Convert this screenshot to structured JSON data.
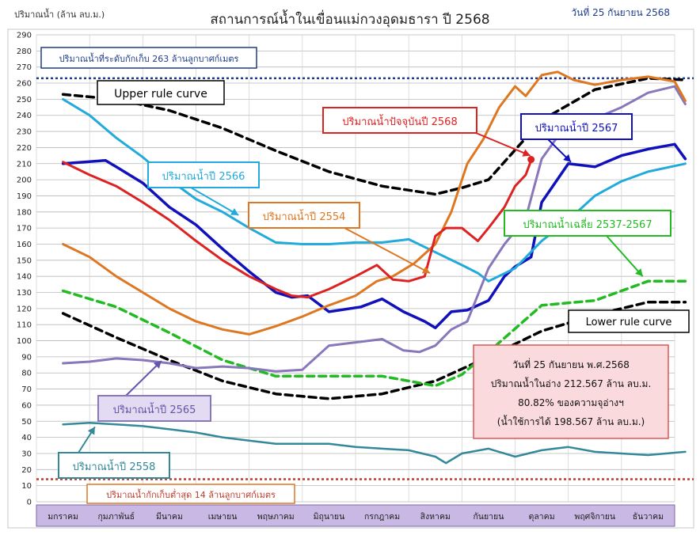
{
  "chart_data": {
    "type": "line",
    "title": "สถานการณ์น้ำในเขื่อนแม่กวงอุดมธารา ปี  2568",
    "date_label": "วันที่ 25 กันยายน 2568",
    "ylabel": "ปริมาณน้ำ (ล้าน ลบ.ม.)",
    "ylim": [
      0,
      290
    ],
    "ytick_step": 10,
    "grid": true,
    "months": [
      "มกราคม",
      "กุมภาพันธ์",
      "มีนาคม",
      "เมษายน",
      "พฤษภาคม",
      "มิถุนายน",
      "กรกฎาคม",
      "สิงหาคม",
      "กันยายน",
      "ตุลาคม",
      "พฤศจิกายน",
      "ธันวาคม"
    ],
    "reference_lines": [
      {
        "value": 263,
        "label": "ปริมาณน้ำที่ระดับกักเก็บ 263 ล้านลูกบาศก์เมตร",
        "color": "#1f3c88"
      },
      {
        "value": 14,
        "label": "ปริมาณน้ำกักเก็บต่ำสุด 14 ล้านลูกบาศก์เมตร",
        "color": "#c0392b"
      }
    ],
    "series": [
      {
        "name": "Upper rule curve",
        "color": "#000000",
        "style": "dash",
        "width": 3.5,
        "x": [
          0,
          1,
          2,
          3,
          4,
          5,
          6,
          7,
          7.5,
          8,
          9,
          10,
          11,
          11.7
        ],
        "y": [
          253,
          250,
          243,
          232,
          218,
          205,
          196,
          191,
          195,
          200,
          237,
          256,
          263,
          262
        ]
      },
      {
        "name": "Lower rule curve",
        "color": "#000000",
        "style": "dash",
        "width": 3.5,
        "x": [
          0,
          1,
          2,
          3,
          4,
          5,
          6,
          7,
          8,
          9,
          10,
          11,
          11.7
        ],
        "y": [
          117,
          102,
          88,
          75,
          67,
          64,
          67,
          75,
          90,
          106,
          116,
          124,
          124
        ]
      },
      {
        "name": "ปริมาณน้ำเฉลี่ย 2537-2567",
        "color": "#22bb22",
        "style": "dash",
        "width": 3.5,
        "x": [
          0,
          1,
          2,
          3,
          4,
          5,
          6,
          7,
          7.5,
          8,
          9,
          10,
          11,
          11.7
        ],
        "y": [
          131,
          121,
          105,
          88,
          78,
          78,
          78,
          72,
          79,
          93,
          122,
          125,
          137,
          137
        ]
      },
      {
        "name": "ปริมาณน้ำปี 2567",
        "color": "#1111bb",
        "style": "solid",
        "width": 3.5,
        "x": [
          0,
          0.8,
          1,
          1.5,
          2,
          2.5,
          3,
          3.5,
          4,
          4.3,
          4.6,
          5,
          5.6,
          6,
          6.4,
          6.8,
          7,
          7.3,
          7.6,
          8,
          8.3,
          8.5,
          8.8,
          9,
          9.5,
          10,
          10.5,
          11,
          11.5,
          11.7
        ],
        "y": [
          210,
          212,
          208,
          198,
          183,
          172,
          157,
          143,
          130,
          127,
          128,
          118,
          121,
          126,
          118,
          112,
          108,
          118,
          119,
          125,
          140,
          146,
          152,
          186,
          210,
          208,
          215,
          219,
          222,
          213
        ]
      },
      {
        "name": "ปริมาณน้ำปี 2566",
        "color": "#22aadd",
        "style": "solid",
        "width": 3,
        "x": [
          0,
          0.5,
          1,
          1.5,
          2,
          2.5,
          3,
          3.5,
          4,
          4.5,
          5,
          5.5,
          6,
          6.5,
          7,
          7.5,
          7.8,
          8,
          8.5,
          9,
          9.5,
          10,
          10.5,
          11,
          11.7
        ],
        "y": [
          250,
          240,
          226,
          214,
          200,
          188,
          180,
          170,
          161,
          160,
          160,
          161,
          161,
          163,
          155,
          147,
          142,
          137,
          145,
          162,
          175,
          190,
          199,
          205,
          210
        ]
      },
      {
        "name": "ปริมาณน้ำปี 2565",
        "color": "#8877bb",
        "style": "solid",
        "width": 3,
        "x": [
          0,
          0.5,
          1,
          1.5,
          2,
          2.5,
          3,
          3.5,
          4,
          4.5,
          5,
          5.5,
          6,
          6.4,
          6.7,
          7,
          7.3,
          7.6,
          8,
          8.3,
          8.7,
          9,
          9.5,
          10,
          10.5,
          11,
          11.5,
          11.7
        ],
        "y": [
          86,
          87,
          89,
          88,
          86,
          83,
          84,
          83,
          81,
          82,
          97,
          99,
          101,
          94,
          93,
          97,
          107,
          112,
          145,
          160,
          176,
          213,
          236,
          238,
          245,
          254,
          258,
          247
        ]
      },
      {
        "name": "ปริมาณน้ำปี 2558",
        "color": "#338899",
        "style": "solid",
        "width": 2.5,
        "x": [
          0,
          0.5,
          1,
          1.5,
          2,
          2.5,
          3,
          3.5,
          4,
          4.5,
          5,
          5.5,
          6,
          6.5,
          7,
          7.2,
          7.5,
          8,
          8.5,
          9,
          9.5,
          10,
          10.5,
          11,
          11.7
        ],
        "y": [
          48,
          49,
          48,
          47,
          45,
          43,
          40,
          38,
          36,
          36,
          36,
          34,
          33,
          32,
          28,
          24,
          30,
          33,
          28,
          32,
          34,
          31,
          30,
          29,
          31
        ]
      },
      {
        "name": "ปริมาณน้ำปี 2554",
        "color": "#dd7722",
        "style": "solid",
        "width": 3,
        "x": [
          0,
          0.5,
          1,
          1.5,
          2,
          2.5,
          3,
          3.5,
          4,
          4.5,
          5,
          5.5,
          5.9,
          6.2,
          6.6,
          7,
          7.3,
          7.6,
          7.9,
          8.2,
          8.5,
          8.7,
          9,
          9.3,
          9.6,
          10,
          10.5,
          11,
          11.5,
          11.7
        ],
        "y": [
          160,
          152,
          140,
          130,
          120,
          112,
          107,
          104,
          109,
          115,
          122,
          128,
          137,
          140,
          148,
          160,
          180,
          210,
          225,
          245,
          258,
          252,
          265,
          267,
          262,
          259,
          262,
          264,
          261,
          249
        ]
      },
      {
        "name": "ปริมาณน้ำปัจจุบันปี 2568",
        "color": "#dd2222",
        "style": "solid",
        "width": 3,
        "x": [
          0,
          0.5,
          1,
          1.5,
          2,
          2.5,
          3,
          3.5,
          4,
          4.3,
          4.6,
          5,
          5.5,
          5.9,
          6.2,
          6.5,
          6.8,
          7,
          7.2,
          7.5,
          7.8,
          8,
          8.3,
          8.5,
          8.7,
          8.8
        ],
        "y": [
          211,
          203,
          196,
          186,
          175,
          162,
          150,
          140,
          132,
          128,
          127,
          132,
          140,
          147,
          138,
          137,
          140,
          165,
          170,
          170,
          162,
          170,
          183,
          196,
          203,
          212
        ]
      }
    ],
    "annotations": [
      {
        "text": "Upper rule curve",
        "color": "#000000"
      },
      {
        "text": "Lower rule curve",
        "color": "#000000"
      },
      {
        "text": "ปริมาณน้ำปัจจุบันปี 2568",
        "color": "#dd2222"
      },
      {
        "text": "ปริมาณน้ำปี 2567",
        "color": "#1111bb"
      },
      {
        "text": "ปริมาณน้ำปี 2566",
        "color": "#22aadd"
      },
      {
        "text": "ปริมาณน้ำปี 2554",
        "color": "#dd7722"
      },
      {
        "text": "ปริมาณน้ำเฉลี่ย 2537-2567",
        "color": "#22bb22"
      },
      {
        "text": "ปริมาณน้ำปี 2565",
        "color": "#8877bb"
      },
      {
        "text": "ปริมาณน้ำปี 2558",
        "color": "#338899"
      }
    ],
    "current_point": {
      "x": 8.8,
      "y": 212.567
    },
    "info_box": [
      "วันที่ 25 กันยายน พ.ศ.2568",
      "ปริมาณน้ำในอ่าง 212.567 ล้าน ลบ.ม.",
      "80.82% ของความจุอ่างฯ",
      "(น้ำใช้การได้ 198.567 ล้าน ลบ.ม.)"
    ]
  }
}
